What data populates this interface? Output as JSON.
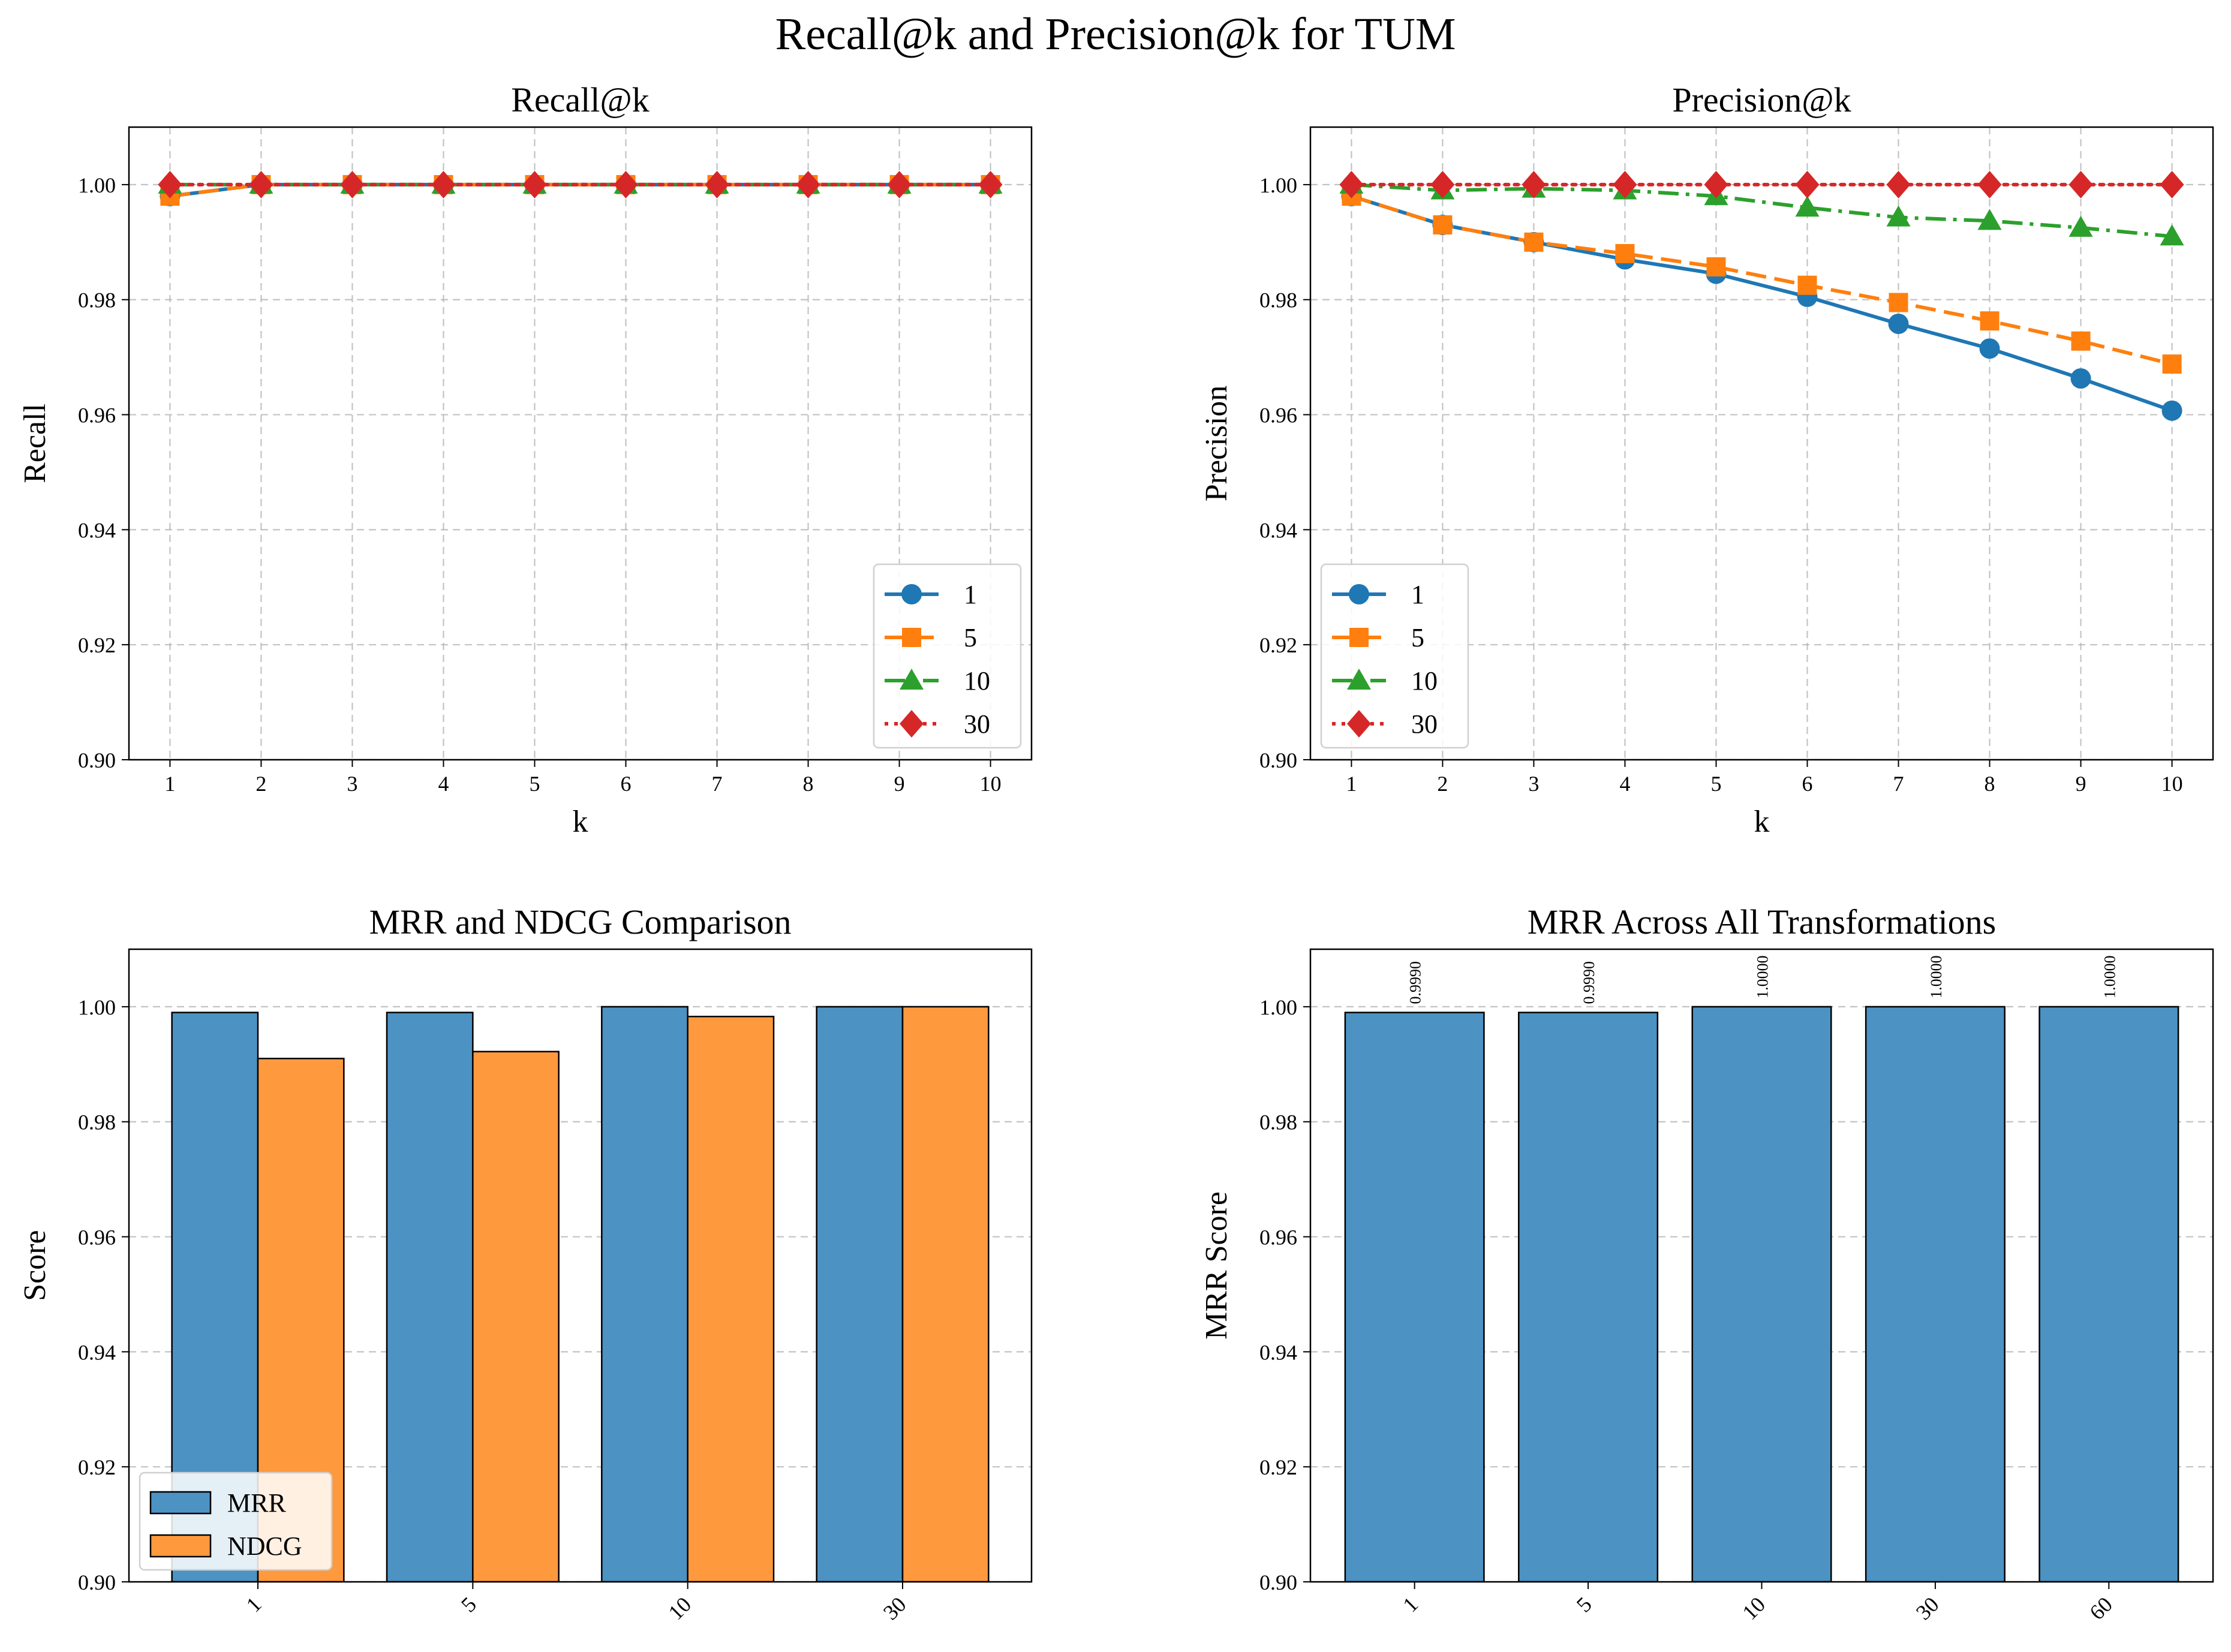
{
  "suptitle": "Recall@k and Precision@k for TUM",
  "colors": {
    "blue": "#1f77b4",
    "orange": "#ff7f0e",
    "green": "#2ca02c",
    "red": "#d62728",
    "bar_blue": "#4c92c3",
    "bar_orange": "#ff993e",
    "grid": "#b0b0b0"
  },
  "chart_data": [
    {
      "type": "line",
      "title": "Recall@k",
      "xlabel": "k",
      "ylabel": "Recall",
      "x": [
        1,
        2,
        3,
        4,
        5,
        6,
        7,
        8,
        9,
        10
      ],
      "xticks": [
        "1",
        "2",
        "3",
        "4",
        "5",
        "6",
        "7",
        "8",
        "9",
        "10"
      ],
      "ylim": [
        0.9,
        1.01
      ],
      "yticks": [
        "0.90",
        "0.92",
        "0.94",
        "0.96",
        "0.98",
        "1.00"
      ],
      "grid": true,
      "legend": "lower-right",
      "series": [
        {
          "name": "1",
          "color": "blue",
          "dash": "solid",
          "marker": "circle",
          "values": [
            0.998,
            1.0,
            1.0,
            1.0,
            1.0,
            1.0,
            1.0,
            1.0,
            1.0,
            1.0
          ]
        },
        {
          "name": "5",
          "color": "orange",
          "dash": "dashed",
          "marker": "square",
          "values": [
            0.998,
            1.0,
            1.0,
            1.0,
            1.0,
            1.0,
            1.0,
            1.0,
            1.0,
            1.0
          ]
        },
        {
          "name": "10",
          "color": "green",
          "dash": "dashdot",
          "marker": "triangle",
          "values": [
            1.0,
            1.0,
            1.0,
            1.0,
            1.0,
            1.0,
            1.0,
            1.0,
            1.0,
            1.0
          ]
        },
        {
          "name": "30",
          "color": "red",
          "dash": "dotted",
          "marker": "diamond",
          "values": [
            1.0,
            1.0,
            1.0,
            1.0,
            1.0,
            1.0,
            1.0,
            1.0,
            1.0,
            1.0
          ]
        }
      ]
    },
    {
      "type": "line",
      "title": "Precision@k",
      "xlabel": "k",
      "ylabel": "Precision",
      "x": [
        1,
        2,
        3,
        4,
        5,
        6,
        7,
        8,
        9,
        10
      ],
      "xticks": [
        "1",
        "2",
        "3",
        "4",
        "5",
        "6",
        "7",
        "8",
        "9",
        "10"
      ],
      "ylim": [
        0.9,
        1.01
      ],
      "yticks": [
        "0.90",
        "0.92",
        "0.94",
        "0.96",
        "0.98",
        "1.00"
      ],
      "grid": true,
      "legend": "lower-left",
      "series": [
        {
          "name": "1",
          "color": "blue",
          "dash": "solid",
          "marker": "circle",
          "values": [
            0.998,
            0.993,
            0.99,
            0.987,
            0.9845,
            0.9805,
            0.9758,
            0.9715,
            0.9663,
            0.9607
          ]
        },
        {
          "name": "5",
          "color": "orange",
          "dash": "dashed",
          "marker": "square",
          "values": [
            0.998,
            0.993,
            0.99,
            0.988,
            0.9857,
            0.9825,
            0.9795,
            0.9763,
            0.9728,
            0.9688
          ]
        },
        {
          "name": "10",
          "color": "green",
          "dash": "dashdot",
          "marker": "triangle",
          "values": [
            1.0,
            0.999,
            0.9993,
            0.999,
            0.998,
            0.996,
            0.9943,
            0.9937,
            0.9925,
            0.991
          ]
        },
        {
          "name": "30",
          "color": "red",
          "dash": "dotted",
          "marker": "diamond",
          "values": [
            1.0,
            1.0,
            1.0,
            1.0,
            1.0,
            1.0,
            1.0,
            1.0,
            1.0,
            1.0
          ]
        }
      ]
    },
    {
      "type": "bar",
      "title": "MRR and NDCG Comparison",
      "xlabel": "",
      "ylabel": "Score",
      "categories": [
        "1",
        "5",
        "10",
        "30"
      ],
      "ylim": [
        0.9,
        1.01
      ],
      "yticks": [
        "0.90",
        "0.92",
        "0.94",
        "0.96",
        "0.98",
        "1.00"
      ],
      "grid": true,
      "legend": "lower-left",
      "series": [
        {
          "name": "MRR",
          "color": "bar_blue",
          "values": [
            0.999,
            0.999,
            1.0,
            1.0
          ]
        },
        {
          "name": "NDCG",
          "color": "bar_orange",
          "values": [
            0.991,
            0.9922,
            0.9983,
            1.0
          ]
        }
      ]
    },
    {
      "type": "bar",
      "title": "MRR Across All Transformations",
      "xlabel": "",
      "ylabel": "MRR Score",
      "categories": [
        "1",
        "5",
        "10",
        "30",
        "60"
      ],
      "ylim": [
        0.9,
        1.01
      ],
      "yticks": [
        "0.90",
        "0.92",
        "0.94",
        "0.96",
        "0.98",
        "1.00"
      ],
      "grid": true,
      "values": [
        0.999,
        0.999,
        1.0,
        1.0,
        1.0
      ],
      "labels": [
        "0.9990",
        "0.9990",
        "1.0000",
        "1.0000",
        "1.0000"
      ],
      "color": "bar_blue"
    }
  ]
}
